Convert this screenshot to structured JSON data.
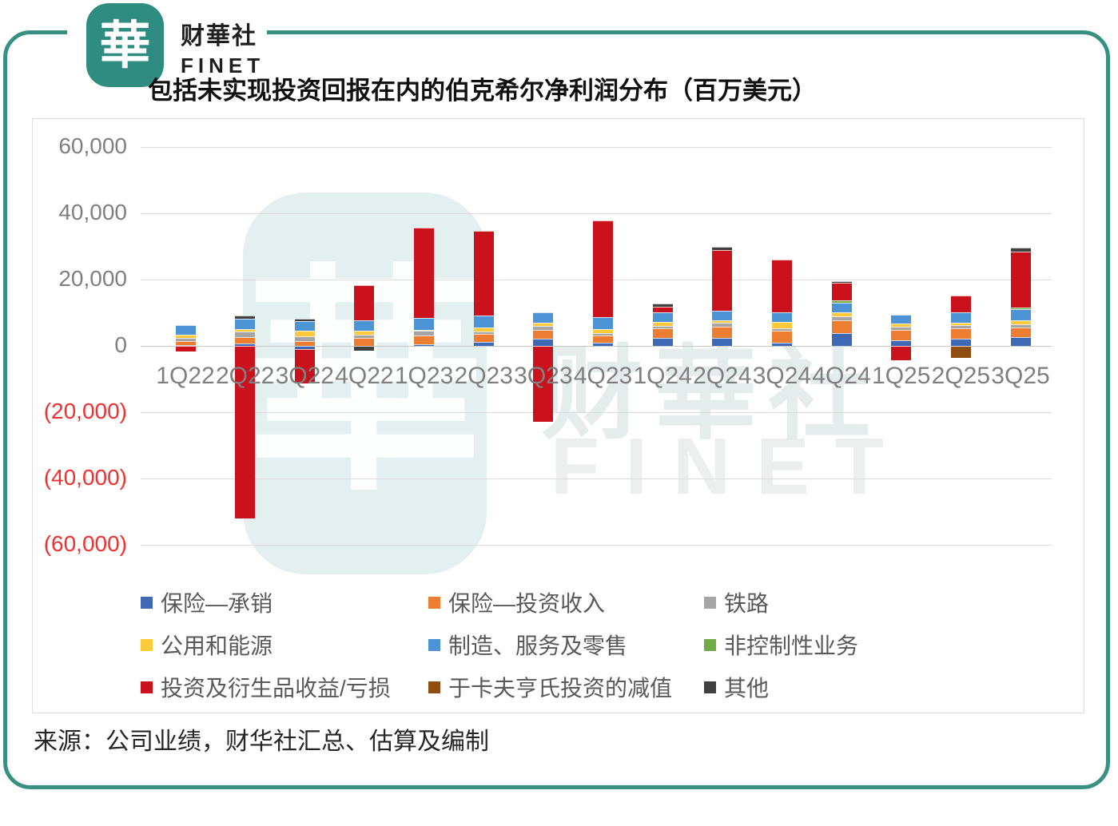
{
  "brand": {
    "logo_glyph": "華",
    "name_cn": "财華社",
    "name_en": "FINET"
  },
  "title": "包括未实现投资回报在内的伯克希尔净利润分布（百万美元）",
  "watermark": {
    "glyph": "華",
    "text_cn": "财華社",
    "text_en": "FINET"
  },
  "source_note": "来源：公司业绩，财华社汇总、估算及编制",
  "colors": {
    "frame_teal": "#389083",
    "logo_teal": "#2F8C80",
    "negative_tick_red": "#F03130",
    "axis_gray": "#7F7F7F",
    "legend_text": "#595959"
  },
  "chart_data": {
    "type": "bar",
    "stacked": true,
    "title": "包括未实现投资回报在内的伯克希尔净利润分布（百万美元）",
    "unit": "百万美元",
    "grid": true,
    "legend_position": "bottom",
    "ylim": [
      -65000,
      65000
    ],
    "categories": [
      "1Q22",
      "2Q22",
      "3Q22",
      "4Q22",
      "1Q23",
      "2Q23",
      "3Q23",
      "4Q23",
      "1Q24",
      "2Q24",
      "3Q24",
      "4Q24",
      "1Q25",
      "2Q25",
      "3Q25"
    ],
    "series": [
      {
        "name": "保险—承销",
        "color": "#3F68B5",
        "values": [
          200,
          700,
          -1000,
          0,
          500,
          1200,
          2200,
          1000,
          2500,
          2400,
          1000,
          3900,
          1700,
          2200,
          2600
        ]
      },
      {
        "name": "保险—投资收入",
        "color": "#ED7D31",
        "values": [
          1200,
          1900,
          1400,
          2400,
          2600,
          2400,
          2700,
          2200,
          2800,
          3400,
          3600,
          3900,
          3000,
          3100,
          3000
        ]
      },
      {
        "name": "铁路",
        "color": "#A6A6A6",
        "values": [
          900,
          1700,
          1500,
          1000,
          1400,
          700,
          1100,
          700,
          700,
          1200,
          800,
          1000,
          1000,
          1000,
          800
        ]
      },
      {
        "name": "公用和能源",
        "color": "#FFC93C",
        "values": [
          1100,
          800,
          1600,
          1200,
          400,
          1200,
          1100,
          1200,
          1200,
          800,
          1900,
          1400,
          1000,
          800,
          1300
        ]
      },
      {
        "name": "制造、服务及零售",
        "color": "#4D94D6",
        "values": [
          2900,
          3200,
          2900,
          3100,
          3600,
          3600,
          3100,
          3500,
          2900,
          2900,
          2900,
          2900,
          2700,
          3100,
          3400
        ]
      },
      {
        "name": "非控制性业务",
        "color": "#70AD47",
        "values": [
          0,
          0,
          0,
          0,
          0,
          0,
          0,
          0,
          0,
          0,
          0,
          700,
          0,
          0,
          400
        ]
      },
      {
        "name": "投资及衍生品收益/亏损",
        "color": "#C9121B",
        "values": [
          -1600,
          -52000,
          -10400,
          10600,
          27200,
          25600,
          -22900,
          29200,
          1600,
          18100,
          15900,
          5300,
          -4300,
          5100,
          17000
        ]
      },
      {
        "name": "于卡夫亨氏投资的减值",
        "color": "#8F4D12",
        "values": [
          0,
          0,
          0,
          0,
          0,
          0,
          0,
          0,
          0,
          0,
          0,
          0,
          0,
          -3600,
          0
        ]
      },
      {
        "name": "其他",
        "color": "#404040",
        "values": [
          0,
          900,
          900,
          -1400,
          0,
          0,
          0,
          0,
          1000,
          1200,
          0,
          500,
          0,
          0,
          1100
        ]
      }
    ],
    "y_axis": {
      "step": 20000,
      "ticks": [
        {
          "label": "60,000",
          "value": 60000,
          "negative": false
        },
        {
          "label": "40,000",
          "value": 40000,
          "negative": false
        },
        {
          "label": "20,000",
          "value": 20000,
          "negative": false
        },
        {
          "label": "0",
          "value": 0,
          "negative": false
        },
        {
          "label": "(20,000)",
          "value": -20000,
          "negative": true
        },
        {
          "label": "(40,000)",
          "value": -40000,
          "negative": true
        },
        {
          "label": "(60,000)",
          "value": -60000,
          "negative": true
        }
      ]
    }
  }
}
